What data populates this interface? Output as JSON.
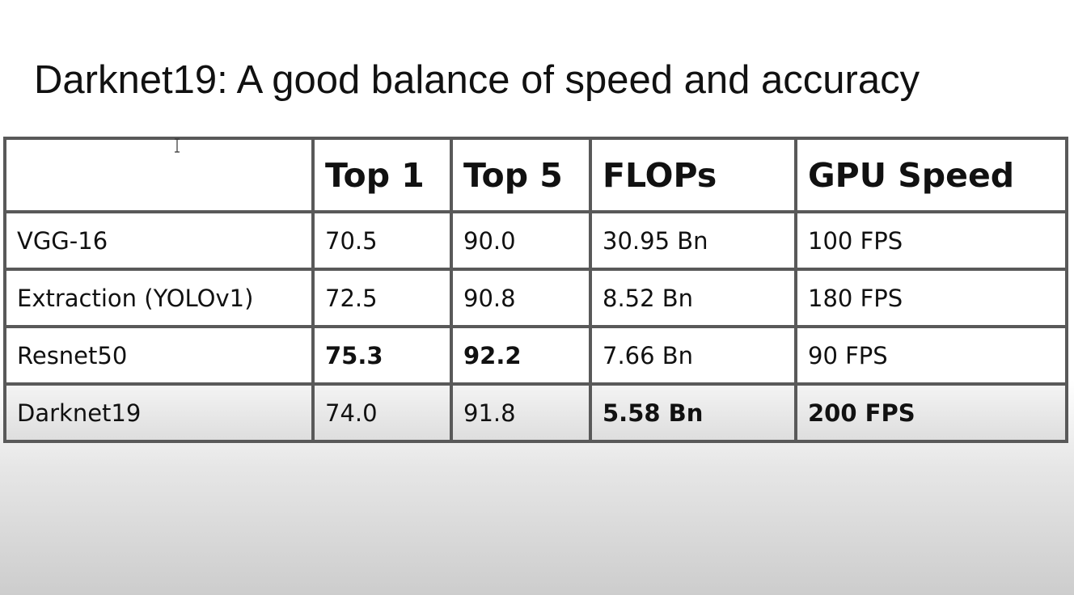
{
  "slide": {
    "title": "Darknet19: A good balance of speed and accuracy"
  },
  "table": {
    "headers": [
      "",
      "Top 1",
      "Top 5",
      "FLOPs",
      "GPU Speed"
    ],
    "rows": [
      {
        "model": "VGG-16",
        "top1": "70.5",
        "top5": "90.0",
        "flops": "30.95 Bn",
        "gpu_speed": "100 FPS"
      },
      {
        "model": "Extraction (YOLOv1)",
        "top1": "72.5",
        "top5": "90.8",
        "flops": "8.52 Bn",
        "gpu_speed": "180 FPS"
      },
      {
        "model": "Resnet50",
        "top1": "75.3",
        "top5": "92.2",
        "flops": "7.66 Bn",
        "gpu_speed": "90 FPS"
      },
      {
        "model": "Darknet19",
        "top1": "74.0",
        "top5": "91.8",
        "flops": "5.58 Bn",
        "gpu_speed": "200 FPS"
      }
    ]
  },
  "cursor": {
    "icon": "text-cursor-icon"
  }
}
